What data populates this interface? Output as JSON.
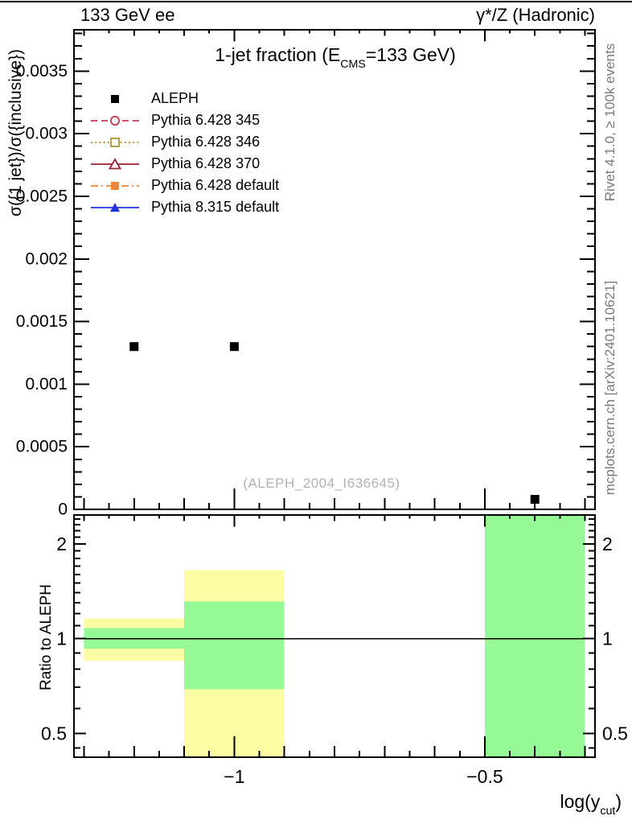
{
  "header": {
    "left": "133 GeV ee",
    "right": "γ*/Z (Hadronic)"
  },
  "right_margin": {
    "top": "Rivet 4.1.0, ≥ 100k events",
    "bottom": "mcplots.cern.ch [arXiv:2401.10621]"
  },
  "watermark": "(ALEPH_2004_I636645)",
  "chart_data": {
    "type": "scatter",
    "title": {
      "pre": "1-jet fraction (E",
      "sub": "CMS",
      "post": "=133 GeV)"
    },
    "xlabel": {
      "pre": "log(y",
      "sub": "cut",
      "post": ")"
    },
    "ylabel_main": "σ({1 jet})/σ({inclusive})",
    "ylabel_ratio": "Ratio to ALEPH",
    "xlim": [
      -1.32,
      -0.28
    ],
    "ylim_main": [
      0,
      0.00383
    ],
    "ylim_ratio": [
      0.42,
      2.47
    ],
    "ratio_scale": "log",
    "grid": false,
    "legend_position": "top-left-inside",
    "x_ticks": [
      {
        "value": -1.0,
        "label": "−1"
      },
      {
        "value": -0.5,
        "label": "−0.5"
      }
    ],
    "x_minor_step": 0.05,
    "main_y_ticks": [
      {
        "value": 0,
        "label": "0"
      },
      {
        "value": 0.0005,
        "label": "0.0005"
      },
      {
        "value": 0.001,
        "label": "0.001"
      },
      {
        "value": 0.0015,
        "label": "0.0015"
      },
      {
        "value": 0.002,
        "label": "0.002"
      },
      {
        "value": 0.0025,
        "label": "0.0025"
      },
      {
        "value": 0.003,
        "label": "0.003"
      },
      {
        "value": 0.0035,
        "label": "0.0035"
      }
    ],
    "main_y_minor_step": 0.0001,
    "ratio_y_ticks": [
      {
        "value": 0.5,
        "label": "0.5"
      },
      {
        "value": 1,
        "label": "1"
      },
      {
        "value": 2,
        "label": "2"
      }
    ],
    "ratio_y_minor": [
      0.45,
      0.6,
      0.7,
      0.8,
      0.9,
      1.1,
      1.2,
      1.3,
      1.4,
      1.5,
      1.6,
      1.7,
      1.8,
      1.9,
      2.1,
      2.2,
      2.3,
      2.4
    ],
    "points": [
      {
        "x": -1.2,
        "y": 0.0013
      },
      {
        "x": -1.0,
        "y": 0.0013
      },
      {
        "x": -0.4,
        "y": 8e-05
      }
    ],
    "ratio_unity_line": 1,
    "ratio_bands": [
      {
        "x_range": [
          -1.3,
          -1.1
        ],
        "yellow": [
          0.85,
          1.16
        ],
        "green": [
          0.93,
          1.08
        ]
      },
      {
        "x_range": [
          -1.1,
          -0.9
        ],
        "yellow": [
          0.35,
          1.65
        ],
        "green": [
          0.69,
          1.31
        ]
      },
      {
        "x_range": [
          -0.5,
          -0.3
        ],
        "yellow": null,
        "green": [
          0.3,
          2.6
        ]
      }
    ],
    "series": [
      {
        "label": "ALEPH",
        "marker": "filled-square",
        "line": "none",
        "color": "#000000"
      },
      {
        "label": "Pythia 6.428 345",
        "marker": "open-circle",
        "line": "dashed",
        "color": "#c83c52"
      },
      {
        "label": "Pythia 6.428 346",
        "marker": "open-square",
        "line": "dotted",
        "color": "#b29536"
      },
      {
        "label": "Pythia 6.428 370",
        "marker": "open-triangle",
        "line": "solid",
        "color": "#9c2333"
      },
      {
        "label": "Pythia 6.428 default",
        "marker": "filled-square",
        "line": "dash-dot",
        "color": "#ee8733"
      },
      {
        "label": "Pythia 8.315 default",
        "marker": "filled-triangle",
        "line": "solid",
        "color": "#2233dd"
      }
    ],
    "colors": {
      "band_yellow": "#fcfca4",
      "band_green": "#95f995",
      "frame": "#000000",
      "data_marker": "#000000"
    }
  }
}
